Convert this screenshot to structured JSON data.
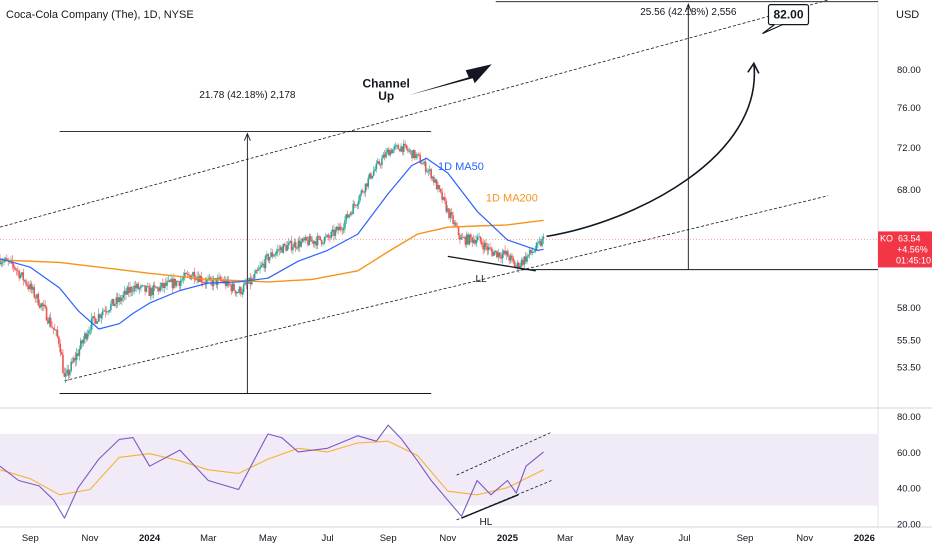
{
  "header": {
    "symbol_title": "Coca-Cola Company (The), 1D, NYSE",
    "currency": "USD"
  },
  "price_badge": {
    "ticker": "KO",
    "price": "63.54",
    "change": "+4.56%",
    "countdown": "01:45:10",
    "color": "#f23645"
  },
  "colors": {
    "candle_up": "#26a69a",
    "candle_down": "#ef5350",
    "ma50": "#2962ff",
    "ma200": "#f7931a",
    "rsi": "#7e57c2",
    "rsi_ma": "#f5b335",
    "rsi_band": "#ede7f6",
    "channel_dash": "#131722"
  },
  "chart_data": [
    {
      "type": "line",
      "title": "Coca-Cola Company (The), 1D, NYSE",
      "y_scale": "log",
      "ylim": [
        50.6,
        87.8
      ],
      "y_ticks": [
        "80.00",
        "76.00",
        "72.00",
        "68.00",
        "58.00",
        "55.50",
        "53.50"
      ],
      "x_ticks": [
        "Sep",
        "Nov",
        "2024",
        "Mar",
        "May",
        "Jul",
        "Sep",
        "Nov",
        "2025",
        "Mar",
        "May",
        "Jul",
        "Sep",
        "Nov",
        "2026"
      ],
      "x_range": [
        "2023-08-01",
        "2026-01-15"
      ],
      "series": [
        {
          "name": "KO",
          "values": [
            [
              "2023-08-01",
              61.9
            ],
            [
              "2023-08-15",
              61.3
            ],
            [
              "2023-09-01",
              59.5
            ],
            [
              "2023-09-15",
              57.8
            ],
            [
              "2023-10-01",
              55.3
            ],
            [
              "2023-10-06",
              52.5
            ],
            [
              "2023-10-20",
              54.6
            ],
            [
              "2023-11-01",
              56.6
            ],
            [
              "2023-11-15",
              57.8
            ],
            [
              "2023-12-01",
              58.5
            ],
            [
              "2023-12-15",
              59.6
            ],
            [
              "2024-01-01",
              59.2
            ],
            [
              "2024-01-15",
              59.6
            ],
            [
              "2024-02-01",
              60.1
            ],
            [
              "2024-02-15",
              60.7
            ],
            [
              "2024-03-01",
              59.9
            ],
            [
              "2024-03-15",
              60.1
            ],
            [
              "2024-04-01",
              59.2
            ],
            [
              "2024-04-15",
              60.1
            ],
            [
              "2024-05-01",
              62.0
            ],
            [
              "2024-05-15",
              62.8
            ],
            [
              "2024-06-01",
              63.2
            ],
            [
              "2024-06-15",
              63.4
            ],
            [
              "2024-07-01",
              63.6
            ],
            [
              "2024-07-15",
              64.6
            ],
            [
              "2024-08-01",
              67.1
            ],
            [
              "2024-08-15",
              69.4
            ],
            [
              "2024-09-01",
              71.6
            ],
            [
              "2024-09-15",
              72.0
            ],
            [
              "2024-10-01",
              71.0
            ],
            [
              "2024-10-15",
              69.4
            ],
            [
              "2024-11-01",
              66.0
            ],
            [
              "2024-11-15",
              63.5
            ],
            [
              "2024-12-01",
              63.6
            ],
            [
              "2024-12-15",
              62.5
            ],
            [
              "2025-01-01",
              62.2
            ],
            [
              "2025-01-10",
              61.2
            ],
            [
              "2025-01-20",
              62.0
            ],
            [
              "2025-02-01",
              62.9
            ],
            [
              "2025-02-07",
              63.54
            ]
          ]
        },
        {
          "name": "1D MA50",
          "values": [
            [
              "2023-08-01",
              61.9
            ],
            [
              "2023-09-01",
              61.2
            ],
            [
              "2023-10-01",
              59.5
            ],
            [
              "2023-10-20",
              57.7
            ],
            [
              "2023-11-10",
              56.3
            ],
            [
              "2023-12-01",
              56.7
            ],
            [
              "2023-12-15",
              57.5
            ],
            [
              "2024-01-01",
              58.3
            ],
            [
              "2024-02-01",
              59.3
            ],
            [
              "2024-03-01",
              59.9
            ],
            [
              "2024-04-01",
              60.0
            ],
            [
              "2024-05-01",
              60.3
            ],
            [
              "2024-06-01",
              61.7
            ],
            [
              "2024-07-01",
              62.6
            ],
            [
              "2024-08-01",
              64.0
            ],
            [
              "2024-09-01",
              67.6
            ],
            [
              "2024-09-25",
              70.2
            ],
            [
              "2024-10-10",
              70.9
            ],
            [
              "2024-11-01",
              69.5
            ],
            [
              "2024-12-01",
              66.0
            ],
            [
              "2025-01-01",
              63.5
            ],
            [
              "2025-02-01",
              62.6
            ],
            [
              "2025-02-07",
              62.7
            ]
          ]
        },
        {
          "name": "1D MA200",
          "values": [
            [
              "2023-08-01",
              61.8
            ],
            [
              "2023-10-01",
              61.6
            ],
            [
              "2023-12-01",
              61.0
            ],
            [
              "2024-01-01",
              60.7
            ],
            [
              "2024-03-01",
              60.2
            ],
            [
              "2024-05-01",
              60.0
            ],
            [
              "2024-06-15",
              60.2
            ],
            [
              "2024-08-01",
              60.9
            ],
            [
              "2024-09-01",
              62.5
            ],
            [
              "2024-10-01",
              64.0
            ],
            [
              "2024-11-01",
              64.6
            ],
            [
              "2024-12-01",
              64.7
            ],
            [
              "2025-01-01",
              64.8
            ],
            [
              "2025-02-07",
              65.2
            ]
          ]
        }
      ],
      "annotations": {
        "channel_label_1": "Channel",
        "channel_label_2": "Up",
        "measure_left": "21.78 (42.18%) 2,178",
        "measure_right": "25.56 (42.18%) 2,556",
        "ma50_label": "1D MA50",
        "ma200_label": "1D MA200",
        "ll_label": "LL",
        "target": "82.00"
      }
    },
    {
      "type": "line",
      "title": "",
      "ylim": [
        18,
        84
      ],
      "y_ticks": [
        "80.00",
        "60.00",
        "40.00",
        "20.00"
      ],
      "band": [
        30,
        70
      ],
      "series": [
        {
          "name": "RSI",
          "values": [
            [
              "2023-08-01",
              52
            ],
            [
              "2023-08-20",
              44
            ],
            [
              "2023-09-10",
              41
            ],
            [
              "2023-09-25",
              33
            ],
            [
              "2023-10-06",
              23
            ],
            [
              "2023-10-20",
              40
            ],
            [
              "2023-11-10",
              56
            ],
            [
              "2023-12-01",
              67
            ],
            [
              "2023-12-15",
              68
            ],
            [
              "2024-01-01",
              52
            ],
            [
              "2024-02-01",
              61
            ],
            [
              "2024-03-01",
              44
            ],
            [
              "2024-04-01",
              39
            ],
            [
              "2024-05-01",
              70
            ],
            [
              "2024-05-15",
              68
            ],
            [
              "2024-06-01",
              60
            ],
            [
              "2024-07-01",
              62
            ],
            [
              "2024-08-01",
              69
            ],
            [
              "2024-08-20",
              66
            ],
            [
              "2024-09-01",
              75
            ],
            [
              "2024-09-15",
              67
            ],
            [
              "2024-10-01",
              55
            ],
            [
              "2024-10-15",
              44
            ],
            [
              "2024-11-01",
              33
            ],
            [
              "2024-11-15",
              24
            ],
            [
              "2024-12-01",
              44
            ],
            [
              "2024-12-15",
              36
            ],
            [
              "2025-01-01",
              44
            ],
            [
              "2025-01-10",
              37
            ],
            [
              "2025-01-20",
              52
            ],
            [
              "2025-02-07",
              60
            ]
          ]
        },
        {
          "name": "RSI MA",
          "values": [
            [
              "2023-08-01",
              50
            ],
            [
              "2023-09-01",
              45
            ],
            [
              "2023-10-01",
              36
            ],
            [
              "2023-11-01",
              39
            ],
            [
              "2023-12-01",
              57
            ],
            [
              "2024-01-01",
              59
            ],
            [
              "2024-02-01",
              55
            ],
            [
              "2024-03-01",
              50
            ],
            [
              "2024-04-01",
              48
            ],
            [
              "2024-05-01",
              56
            ],
            [
              "2024-06-01",
              62
            ],
            [
              "2024-07-01",
              60
            ],
            [
              "2024-08-01",
              65
            ],
            [
              "2024-09-01",
              66
            ],
            [
              "2024-10-01",
              58
            ],
            [
              "2024-11-01",
              38
            ],
            [
              "2024-12-01",
              36
            ],
            [
              "2025-01-01",
              40
            ],
            [
              "2025-02-07",
              50
            ]
          ]
        }
      ],
      "annotations": {
        "hl_label": "HL"
      }
    }
  ]
}
